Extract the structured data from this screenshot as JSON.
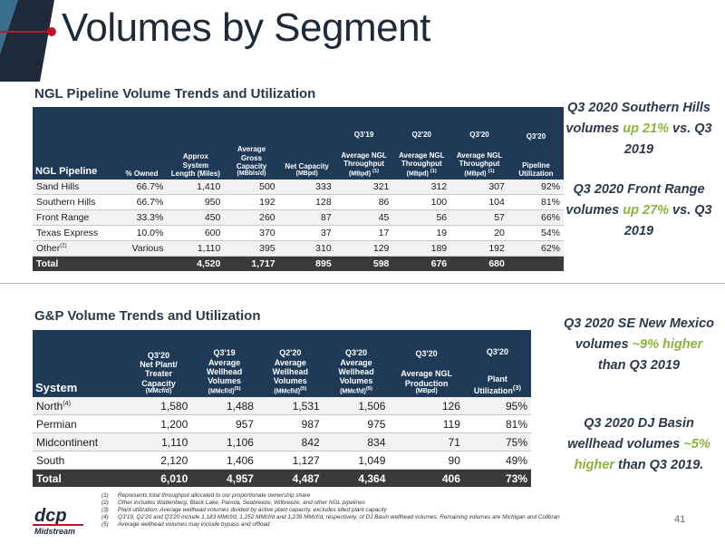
{
  "title": "Volumes by Segment",
  "ngl": {
    "heading": "NGL Pipeline Volume Trends and Utilization",
    "headers": {
      "pipeline": "NGL Pipeline",
      "owned": "% Owned",
      "length": "Approx System Length (Miles)",
      "gross": "Average Gross Capacity",
      "gross_unit": "(MBbls/d)",
      "net": "Net Capacity",
      "net_unit": "(MBpd)",
      "q319": "Q3'19",
      "q220": "Q2'20",
      "q320": "Q3'20",
      "q320b": "Q3'20",
      "avg": "Average NGL Throughput",
      "avg_unit": "(MBpd)",
      "fn1": "(1)",
      "util": "Pipeline Utilization"
    },
    "rows": [
      {
        "name": "Sand Hills",
        "fn": "",
        "owned": "66.7%",
        "length": "1,410",
        "gross": "500",
        "net": "333",
        "q319": "321",
        "q220": "312",
        "q320": "307",
        "util": "92%"
      },
      {
        "name": "Southern Hills",
        "fn": "",
        "owned": "66.7%",
        "length": "950",
        "gross": "192",
        "net": "128",
        "q319": "86",
        "q220": "100",
        "q320": "104",
        "util": "81%"
      },
      {
        "name": "Front Range",
        "fn": "",
        "owned": "33.3%",
        "length": "450",
        "gross": "260",
        "net": "87",
        "q319": "45",
        "q220": "56",
        "q320": "57",
        "util": "66%"
      },
      {
        "name": "Texas Express",
        "fn": "",
        "owned": "10.0%",
        "length": "600",
        "gross": "370",
        "net": "37",
        "q319": "17",
        "q220": "19",
        "q320": "20",
        "util": "54%"
      },
      {
        "name": "Other",
        "fn": "(2)",
        "owned": "Various",
        "length": "1,110",
        "gross": "395",
        "net": "310",
        "q319": "129",
        "q220": "189",
        "q320": "192",
        "util": "62%"
      }
    ],
    "total": {
      "name": "Total",
      "owned": "",
      "length": "4,520",
      "gross": "1,717",
      "net": "895",
      "q319": "598",
      "q220": "676",
      "q320": "680",
      "util": ""
    }
  },
  "gp": {
    "heading": "G&P Volume Trends and Utilization",
    "headers": {
      "system": "System",
      "q320a": "Q3'20",
      "cap": "Net Plant/ Treater Capacity",
      "cap_unit": "(MMcf/d)",
      "q319": "Q3'19",
      "q220": "Q2'20",
      "q320b": "Q3'20",
      "avg": "Average Wellhead Volumes",
      "avg_unit": "(MMcf/d)",
      "fn5": "(5)",
      "q320c": "Q3'20",
      "ngl": "Average NGL Production",
      "ngl_unit": "(MBpd)",
      "q320d": "Q3'20",
      "util": "Plant Utilization",
      "fn3": "(3)"
    },
    "rows": [
      {
        "name": "North",
        "fn": "(4)",
        "cap": "1,580",
        "q319": "1,488",
        "q220": "1,531",
        "q320": "1,506",
        "ngl": "126",
        "util": "95%"
      },
      {
        "name": "Permian",
        "fn": "",
        "cap": "1,200",
        "q319": "957",
        "q220": "987",
        "q320": "975",
        "ngl": "119",
        "util": "81%"
      },
      {
        "name": "Midcontinent",
        "fn": "",
        "cap": "1,110",
        "q319": "1,106",
        "q220": "842",
        "q320": "834",
        "ngl": "71",
        "util": "75%"
      },
      {
        "name": "South",
        "fn": "",
        "cap": "2,120",
        "q319": "1,406",
        "q220": "1,127",
        "q320": "1,049",
        "ngl": "90",
        "util": "49%"
      }
    ],
    "total": {
      "name": "Total",
      "cap": "6,010",
      "q319": "4,957",
      "q220": "4,487",
      "q320": "4,364",
      "ngl": "406",
      "util": "73%"
    }
  },
  "highlights": [
    {
      "a": "Q3 2020 Southern Hills volumes ",
      "g": "up 21%",
      "b": " vs. Q3 2019"
    },
    {
      "a": "Q3 2020 Front Range volumes ",
      "g": "up 27%",
      "b": " vs. Q3 2019"
    },
    {
      "a": "Q3 2020 SE New Mexico volumes ",
      "g": "~9% higher",
      "b": " than Q3 2019"
    },
    {
      "a": "Q3 2020 DJ Basin wellhead volumes ",
      "g": "~5% higher",
      "b": " than Q3 2019."
    }
  ],
  "footnotes": [
    {
      "n": "(1)",
      "t": "Represents total throughput allocated to our proportionate ownership share"
    },
    {
      "n": "(2)",
      "t": "Other includes Wattenberg, Black Lake, Panola, Seabreeze, Wilbreeze, and other NGL pipelines"
    },
    {
      "n": "(3)",
      "t": "Plant utilization: Average wellhead volumes divided by active plant capacity, excludes idled plant capacity"
    },
    {
      "n": "(4)",
      "t": "Q3'19, Q2'20 and Q3'20 include 1,183 MMcf/d, 1,252 MMcf/d and 1,239 MMcf/d, respectively, of DJ Basin wellhead volumes. Remaining volumes are Michigan and Collbran"
    },
    {
      "n": "(5)",
      "t": "Average wellhead volumes may include bypass and offload"
    }
  ],
  "logo": {
    "top": "dcp",
    "bottom": "Midstream"
  },
  "page_number": "41",
  "colors": {
    "header": "#1e3a57",
    "accent": "#c8102e",
    "green": "#8db43a",
    "total": "#3a3a3a"
  }
}
